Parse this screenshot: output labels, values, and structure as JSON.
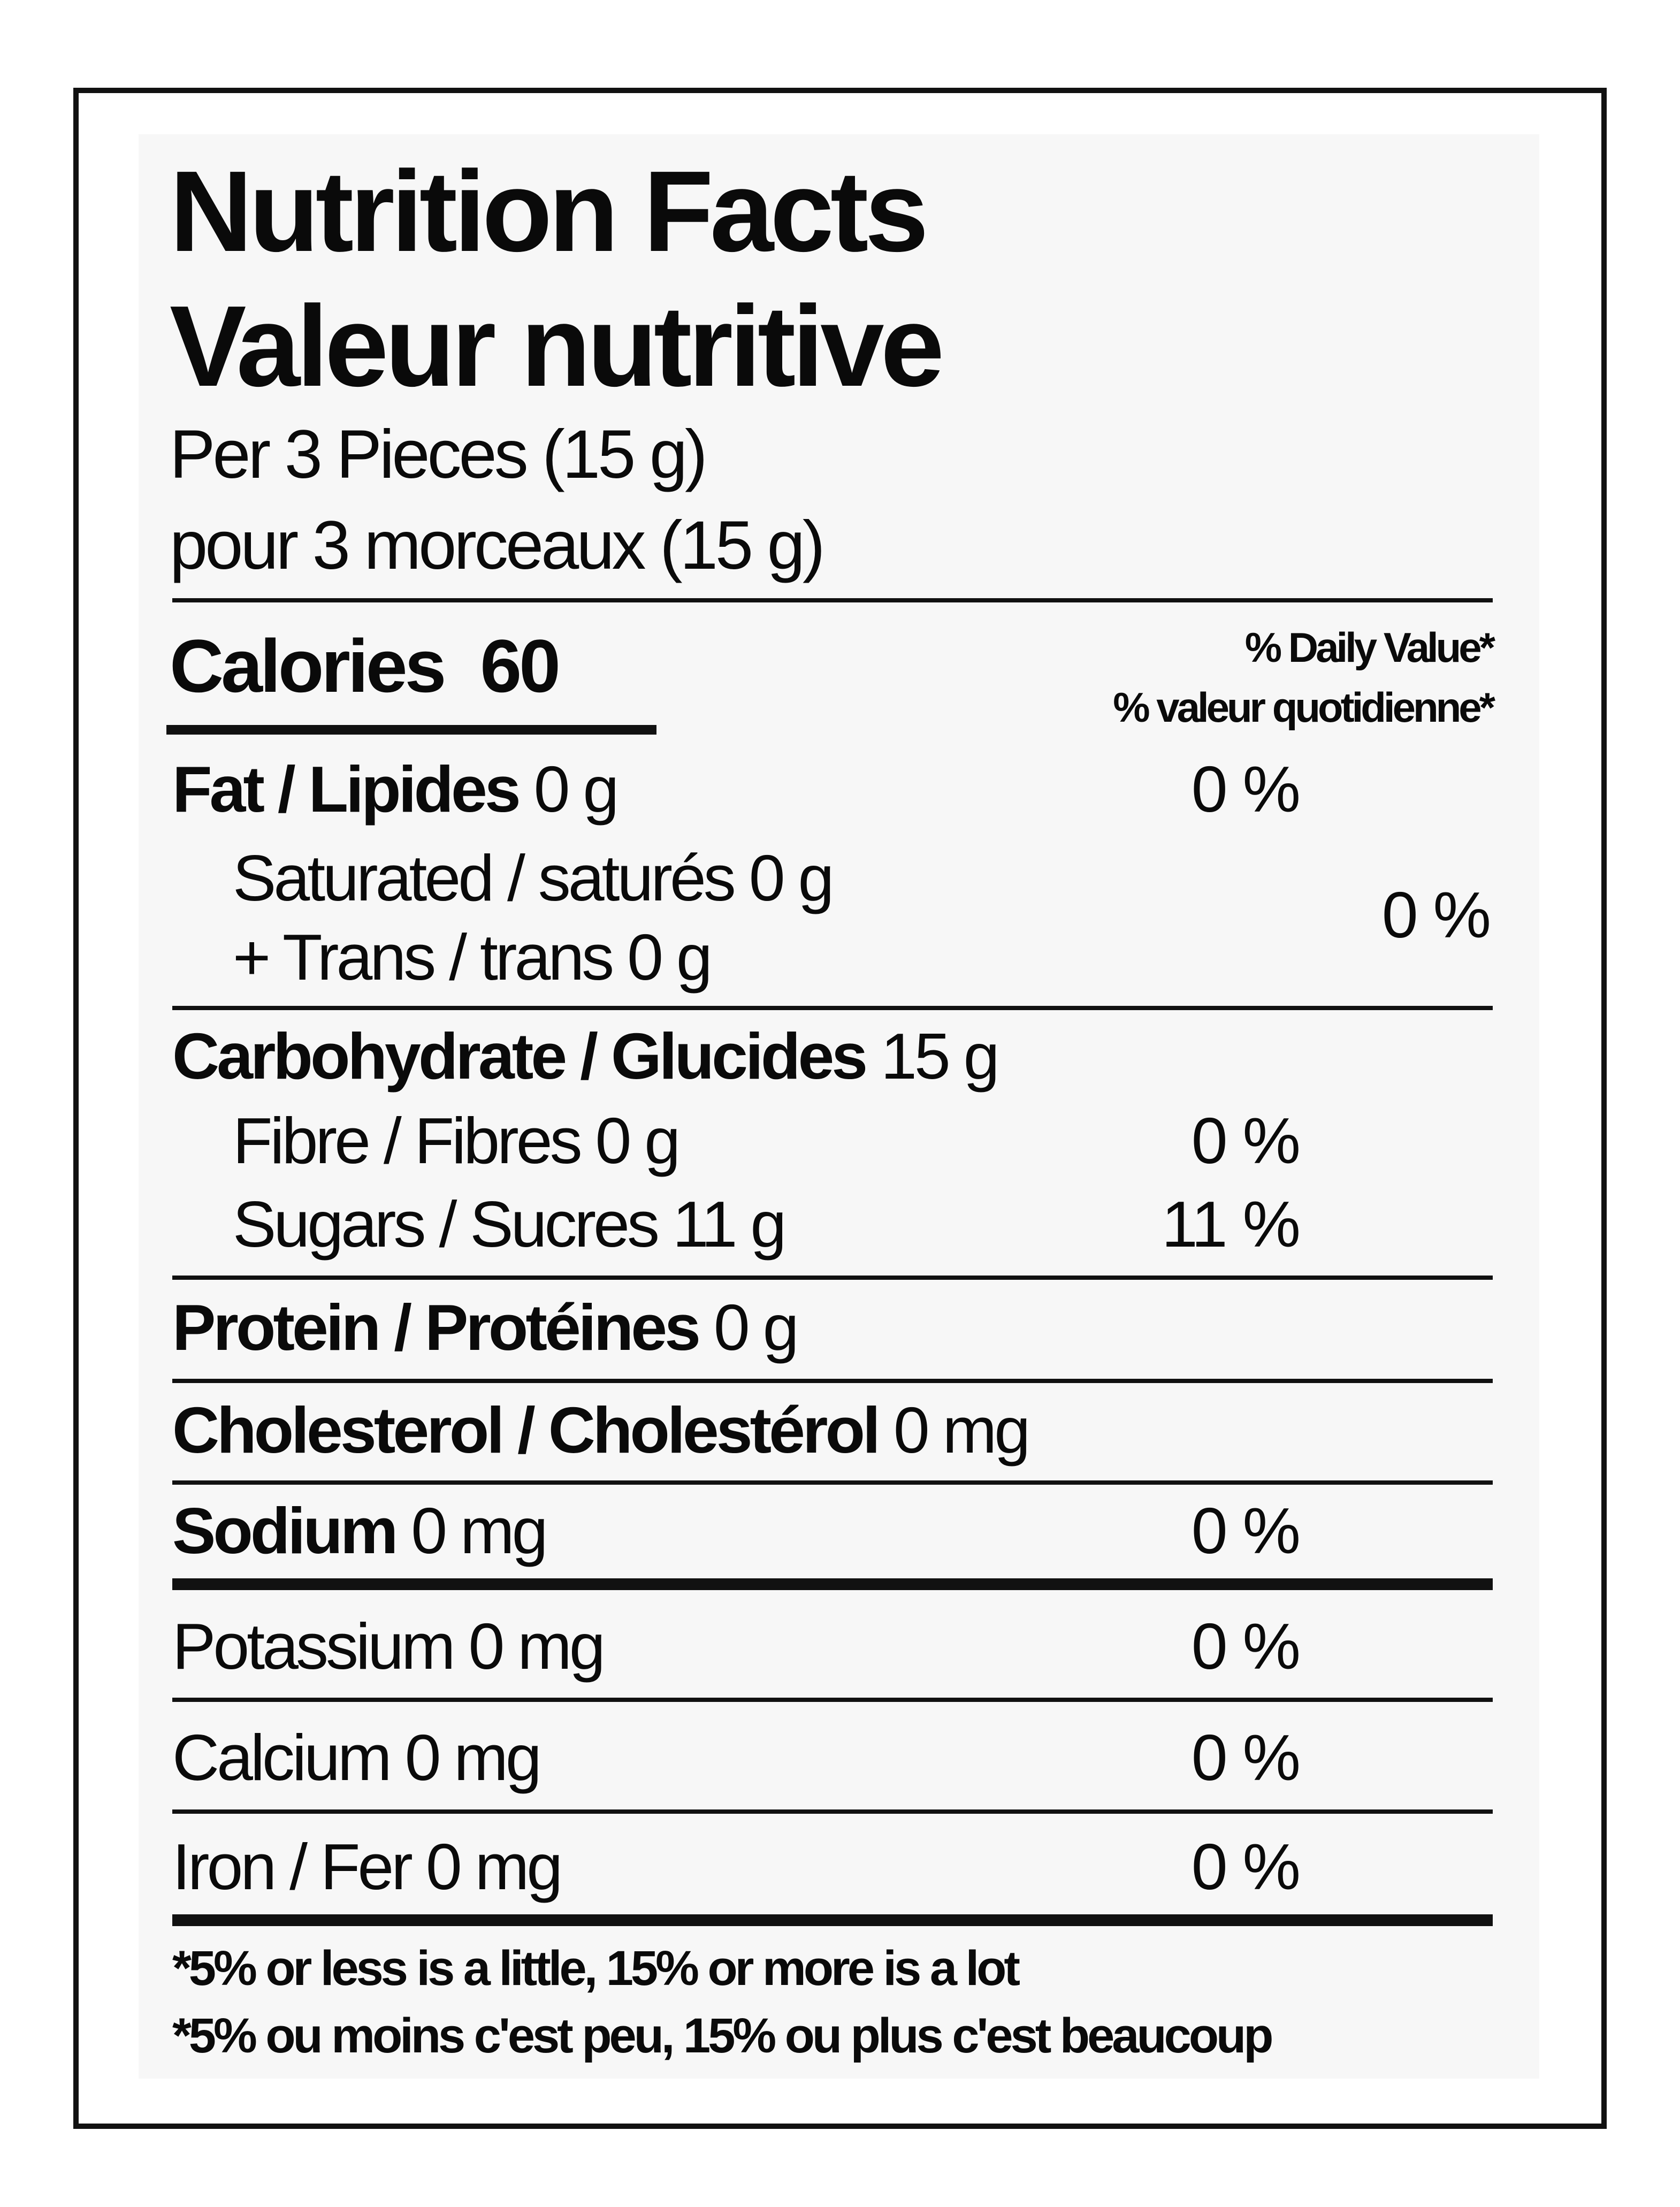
{
  "title_en": "Nutrition Facts",
  "title_fr": "Valeur nutritive",
  "serving_en": "Per 3 Pieces (15 g)",
  "serving_fr": "pour 3 morceaux (15 g)",
  "calories": {
    "label": "Calories",
    "value": "60"
  },
  "daily_value_header": {
    "en": "% Daily Value*",
    "fr": "% valeur quotidienne*"
  },
  "nutrients": {
    "fat": {
      "label": "Fat / Lipides",
      "amount": "0 g",
      "dv": "0 %"
    },
    "saturated": {
      "label": "Saturated / saturés",
      "amount": "0 g"
    },
    "trans": {
      "label": "+ Trans / trans",
      "amount": "0 g"
    },
    "sat_trans_dv": "0 %",
    "carbohydrate": {
      "label": "Carbohydrate / Glucides",
      "amount": "15 g"
    },
    "fibre": {
      "label": "Fibre / Fibres",
      "amount": "0 g",
      "dv": "0 %"
    },
    "sugars": {
      "label": "Sugars / Sucres",
      "amount": "11 g",
      "dv": "11 %"
    },
    "protein": {
      "label": "Protein / Protéines",
      "amount": "0 g"
    },
    "cholesterol": {
      "label": "Cholesterol / Cholestérol",
      "amount": "0 mg"
    },
    "sodium": {
      "label": "Sodium",
      "amount": "0 mg",
      "dv": "0 %"
    },
    "potassium": {
      "label": "Potassium",
      "amount": "0 mg",
      "dv": "0 %"
    },
    "calcium": {
      "label": "Calcium",
      "amount": "0 mg",
      "dv": "0 %"
    },
    "iron": {
      "label": "Iron / Fer",
      "amount": "0 mg",
      "dv": "0 %"
    }
  },
  "footnote_en": "*5% or less is a little, 15% or more is a lot",
  "footnote_fr": "*5% ou moins c'est peu, 15% ou plus c'est beaucoup"
}
